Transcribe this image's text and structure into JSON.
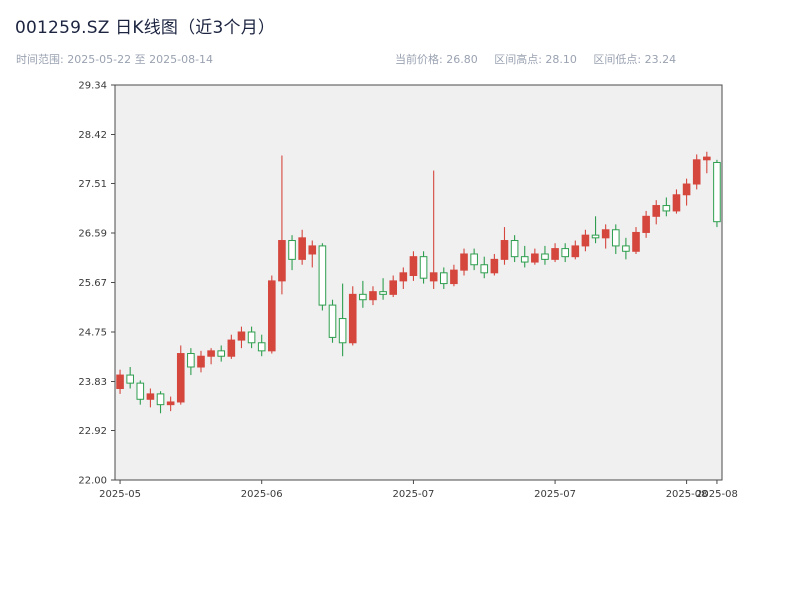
{
  "header": {
    "title": "001259.SZ 日K线图（近3个月）",
    "time_range": "时间范围: 2025-05-22 至 2025-08-14",
    "current_price": "当前价格: 26.80",
    "range_high": "区间高点: 28.10",
    "range_low": "区间低点: 23.24"
  },
  "colors": {
    "up": "#d5463d",
    "down": "#2e9e4e",
    "down_fill": "#ffffff",
    "plot_bg": "#f0f0f1",
    "axis": "#4a4a4a",
    "tick_text": "#3a3a3a",
    "title_text": "#1c2440",
    "subtitle_text": "#9aa2b1"
  },
  "chart_data": {
    "type": "candlestick",
    "title": "001259.SZ 日K线图（近3个月）",
    "xlabel": "",
    "ylabel": "",
    "grid": false,
    "legend": "none",
    "ylim": [
      22.0,
      29.34
    ],
    "yticks": [
      22.0,
      22.92,
      23.83,
      24.75,
      25.67,
      26.59,
      27.51,
      28.42,
      29.34
    ],
    "ytick_labels": [
      "22.00",
      "22.92",
      "23.83",
      "24.75",
      "25.67",
      "26.59",
      "27.51",
      "28.42",
      "29.34"
    ],
    "xticks": [
      {
        "index": 0,
        "label": "2025-05"
      },
      {
        "index": 14,
        "label": "2025-06"
      },
      {
        "index": 29,
        "label": "2025-07"
      },
      {
        "index": 43,
        "label": "2025-07"
      },
      {
        "index": 56,
        "label": "2025-08"
      },
      {
        "index": 59,
        "label": "2025-08"
      }
    ],
    "summary": {
      "current_price": 26.8,
      "range_high": 28.1,
      "range_low": 23.24
    },
    "dates": [
      "2025-05-22",
      "2025-05-23",
      "2025-05-26",
      "2025-05-27",
      "2025-05-28",
      "2025-05-29",
      "2025-05-30",
      "2025-06-03",
      "2025-06-04",
      "2025-06-05",
      "2025-06-06",
      "2025-06-09",
      "2025-06-10",
      "2025-06-11",
      "2025-06-12",
      "2025-06-13",
      "2025-06-16",
      "2025-06-17",
      "2025-06-18",
      "2025-06-19",
      "2025-06-20",
      "2025-06-23",
      "2025-06-24",
      "2025-06-25",
      "2025-06-26",
      "2025-06-27",
      "2025-06-30",
      "2025-07-01",
      "2025-07-02",
      "2025-07-03",
      "2025-07-04",
      "2025-07-07",
      "2025-07-08",
      "2025-07-09",
      "2025-07-10",
      "2025-07-11",
      "2025-07-14",
      "2025-07-15",
      "2025-07-16",
      "2025-07-17",
      "2025-07-18",
      "2025-07-21",
      "2025-07-22",
      "2025-07-23",
      "2025-07-24",
      "2025-07-25",
      "2025-07-28",
      "2025-07-29",
      "2025-07-30",
      "2025-07-31",
      "2025-08-01",
      "2025-08-04",
      "2025-08-05",
      "2025-08-06",
      "2025-08-07",
      "2025-08-08",
      "2025-08-11",
      "2025-08-12",
      "2025-08-13",
      "2025-08-14"
    ],
    "ohlc": [
      [
        23.7,
        24.05,
        23.6,
        23.95
      ],
      [
        23.95,
        24.1,
        23.7,
        23.8
      ],
      [
        23.8,
        23.85,
        23.4,
        23.5
      ],
      [
        23.5,
        23.7,
        23.35,
        23.6
      ],
      [
        23.6,
        23.65,
        23.24,
        23.4
      ],
      [
        23.4,
        23.55,
        23.28,
        23.45
      ],
      [
        23.45,
        24.5,
        23.4,
        24.35
      ],
      [
        24.35,
        24.45,
        23.95,
        24.1
      ],
      [
        24.1,
        24.4,
        24.0,
        24.3
      ],
      [
        24.3,
        24.45,
        24.15,
        24.4
      ],
      [
        24.4,
        24.5,
        24.2,
        24.3
      ],
      [
        24.3,
        24.7,
        24.25,
        24.6
      ],
      [
        24.6,
        24.85,
        24.45,
        24.75
      ],
      [
        24.75,
        24.85,
        24.45,
        24.55
      ],
      [
        24.55,
        24.7,
        24.3,
        24.4
      ],
      [
        24.4,
        25.8,
        24.35,
        25.7
      ],
      [
        25.7,
        28.03,
        25.45,
        26.45
      ],
      [
        26.45,
        26.55,
        25.9,
        26.1
      ],
      [
        26.1,
        26.65,
        26.0,
        26.5
      ],
      [
        26.2,
        26.45,
        25.95,
        26.35
      ],
      [
        26.35,
        26.4,
        25.15,
        25.25
      ],
      [
        25.25,
        25.35,
        24.55,
        24.65
      ],
      [
        25.0,
        25.65,
        24.3,
        24.55
      ],
      [
        24.55,
        25.6,
        24.5,
        25.45
      ],
      [
        25.45,
        25.7,
        25.2,
        25.35
      ],
      [
        25.35,
        25.6,
        25.25,
        25.5
      ],
      [
        25.5,
        25.75,
        25.35,
        25.45
      ],
      [
        25.45,
        25.8,
        25.4,
        25.7
      ],
      [
        25.7,
        25.95,
        25.55,
        25.85
      ],
      [
        25.8,
        26.25,
        25.7,
        26.15
      ],
      [
        26.15,
        26.25,
        25.65,
        25.75
      ],
      [
        25.7,
        27.75,
        25.55,
        25.85
      ],
      [
        25.85,
        25.95,
        25.55,
        25.65
      ],
      [
        25.65,
        26.0,
        25.6,
        25.9
      ],
      [
        25.9,
        26.3,
        25.8,
        26.2
      ],
      [
        26.2,
        26.3,
        25.9,
        26.0
      ],
      [
        26.0,
        26.15,
        25.75,
        25.85
      ],
      [
        25.85,
        26.2,
        25.8,
        26.1
      ],
      [
        26.1,
        26.7,
        26.0,
        26.45
      ],
      [
        26.45,
        26.55,
        26.05,
        26.15
      ],
      [
        26.15,
        26.35,
        25.95,
        26.05
      ],
      [
        26.05,
        26.3,
        26.0,
        26.2
      ],
      [
        26.2,
        26.35,
        26.0,
        26.1
      ],
      [
        26.1,
        26.4,
        26.05,
        26.3
      ],
      [
        26.3,
        26.4,
        26.05,
        26.15
      ],
      [
        26.15,
        26.45,
        26.1,
        26.35
      ],
      [
        26.35,
        26.65,
        26.25,
        26.55
      ],
      [
        26.55,
        26.9,
        26.4,
        26.5
      ],
      [
        26.5,
        26.75,
        26.3,
        26.65
      ],
      [
        26.65,
        26.75,
        26.2,
        26.35
      ],
      [
        26.35,
        26.5,
        26.1,
        26.25
      ],
      [
        26.25,
        26.7,
        26.2,
        26.6
      ],
      [
        26.6,
        27.0,
        26.5,
        26.9
      ],
      [
        26.9,
        27.2,
        26.75,
        27.1
      ],
      [
        27.1,
        27.25,
        26.9,
        27.0
      ],
      [
        27.0,
        27.4,
        26.95,
        27.3
      ],
      [
        27.3,
        27.6,
        27.1,
        27.5
      ],
      [
        27.5,
        28.05,
        27.4,
        27.95
      ],
      [
        27.95,
        28.1,
        27.7,
        28.0
      ],
      [
        27.9,
        27.95,
        26.7,
        26.8
      ]
    ]
  }
}
